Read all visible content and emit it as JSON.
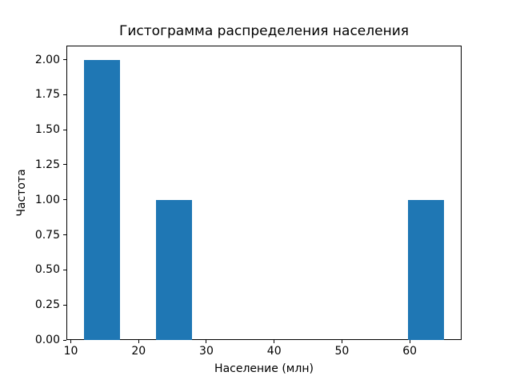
{
  "figure": {
    "background": "#ffffff"
  },
  "chart_data": {
    "type": "histogram",
    "title": "Гистограмма распределения населения",
    "xlabel": "Население (млн)",
    "ylabel": "Частота",
    "bar_color": "#1f77b4",
    "axis_color": "#000000",
    "grid": false,
    "xlim": [
      9.35,
      67.65
    ],
    "ylim": [
      0,
      2.1
    ],
    "xticks": [
      {
        "value": 10,
        "label": "10"
      },
      {
        "value": 20,
        "label": "20"
      },
      {
        "value": 30,
        "label": "30"
      },
      {
        "value": 40,
        "label": "40"
      },
      {
        "value": 50,
        "label": "50"
      },
      {
        "value": 60,
        "label": "60"
      }
    ],
    "yticks": [
      {
        "value": 0.0,
        "label": "0.00"
      },
      {
        "value": 0.25,
        "label": "0.25"
      },
      {
        "value": 0.5,
        "label": "0.50"
      },
      {
        "value": 0.75,
        "label": "0.75"
      },
      {
        "value": 1.0,
        "label": "1.00"
      },
      {
        "value": 1.25,
        "label": "1.25"
      },
      {
        "value": 1.5,
        "label": "1.50"
      },
      {
        "value": 1.75,
        "label": "1.75"
      },
      {
        "value": 2.0,
        "label": "2.00"
      }
    ],
    "bins": [
      {
        "start": 12.0,
        "end": 17.3,
        "count": 2
      },
      {
        "start": 22.6,
        "end": 27.9,
        "count": 1
      },
      {
        "start": 59.7,
        "end": 65.0,
        "count": 1
      }
    ]
  }
}
